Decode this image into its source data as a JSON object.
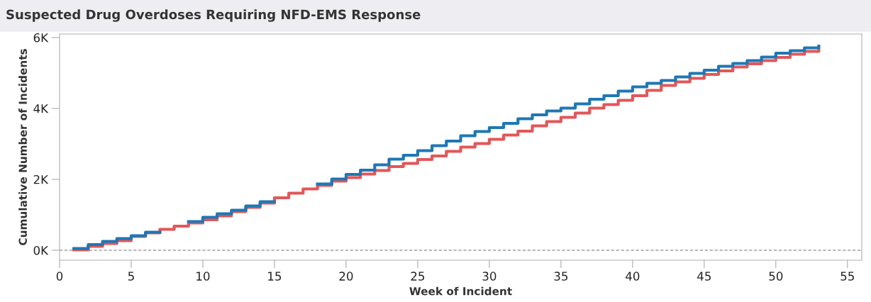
{
  "chart_data": {
    "type": "step",
    "title": "Suspected Drug Overdoses Requiring NFD-EMS Response",
    "xlabel": "Week of Incident",
    "ylabel": "Cumulative Number of Incidents",
    "x": [
      1,
      2,
      3,
      4,
      5,
      6,
      7,
      8,
      9,
      10,
      11,
      12,
      13,
      14,
      15,
      16,
      17,
      18,
      19,
      20,
      21,
      22,
      23,
      24,
      25,
      26,
      27,
      28,
      29,
      30,
      31,
      32,
      33,
      34,
      35,
      36,
      37,
      38,
      39,
      40,
      41,
      42,
      43,
      44,
      45,
      46,
      47,
      48,
      49,
      50,
      51,
      52,
      53
    ],
    "series": [
      {
        "color": "#e15759",
        "values": [
          10,
          110,
          190,
          270,
          390,
          490,
          590,
          680,
          770,
          860,
          970,
          1090,
          1210,
          1330,
          1480,
          1610,
          1730,
          1830,
          1950,
          2050,
          2150,
          2250,
          2360,
          2450,
          2560,
          2660,
          2790,
          2910,
          3010,
          3130,
          3250,
          3360,
          3510,
          3630,
          3750,
          3870,
          4010,
          4110,
          4230,
          4360,
          4510,
          4650,
          4750,
          4850,
          4960,
          5060,
          5170,
          5260,
          5350,
          5440,
          5530,
          5610,
          5660
        ]
      },
      {
        "color": "#1f77b4",
        "values": [
          50,
          160,
          250,
          330,
          410,
          510,
          null,
          null,
          810,
          930,
          1030,
          1130,
          1250,
          1370,
          null,
          null,
          null,
          1870,
          2010,
          2140,
          2260,
          2410,
          2570,
          2680,
          2810,
          2950,
          3080,
          3230,
          3350,
          3460,
          3580,
          3710,
          3820,
          3930,
          4010,
          4130,
          4260,
          4360,
          4490,
          4610,
          4710,
          4790,
          4890,
          4990,
          5080,
          5190,
          5270,
          5350,
          5450,
          5560,
          5630,
          5710,
          5760
        ]
      }
    ],
    "xlim": [
      0,
      56
    ],
    "xticks": [
      0,
      5,
      10,
      15,
      20,
      25,
      30,
      35,
      40,
      45,
      50,
      55
    ],
    "ylim": [
      -280,
      6100
    ],
    "yticks": [
      {
        "value": 0,
        "label": "0K"
      },
      {
        "value": 2000,
        "label": "2K"
      },
      {
        "value": 4000,
        "label": "4K"
      },
      {
        "value": 6000,
        "label": "6K"
      }
    ],
    "ref_lines": [
      {
        "axis": "y",
        "value": 0,
        "color": "#9e9e9e",
        "line_style": "dashed"
      }
    ],
    "grid": false,
    "legend": false
  }
}
